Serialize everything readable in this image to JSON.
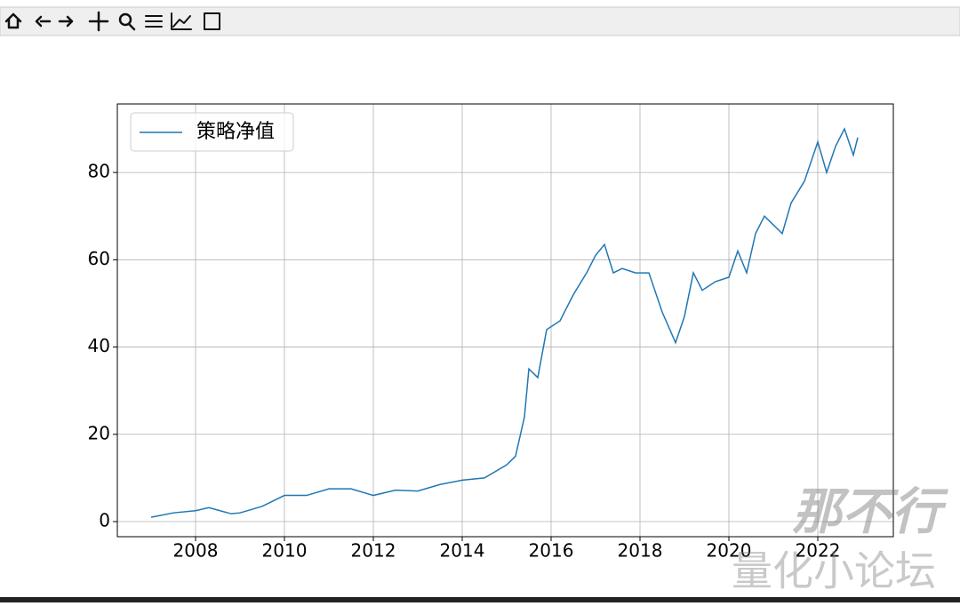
{
  "chart_data": {
    "type": "line",
    "x": [
      2007.0,
      2007.5,
      2008.0,
      2008.3,
      2008.8,
      2009.0,
      2009.5,
      2010.0,
      2010.5,
      2011.0,
      2011.5,
      2012.0,
      2012.5,
      2013.0,
      2013.5,
      2014.0,
      2014.5,
      2015.0,
      2015.2,
      2015.4,
      2015.5,
      2015.7,
      2015.9,
      2016.2,
      2016.5,
      2016.8,
      2017.0,
      2017.2,
      2017.4,
      2017.6,
      2017.9,
      2018.2,
      2018.5,
      2018.8,
      2019.0,
      2019.2,
      2019.4,
      2019.7,
      2020.0,
      2020.2,
      2020.4,
      2020.6,
      2020.8,
      2021.0,
      2021.2,
      2021.4,
      2021.7,
      2022.0,
      2022.2,
      2022.4,
      2022.6,
      2022.8,
      2022.9
    ],
    "series": [
      {
        "name": "策略净值",
        "color": "#1f77b4",
        "values": [
          1,
          2,
          2.5,
          3.2,
          1.8,
          2,
          3.5,
          6,
          6,
          7.5,
          7.5,
          6,
          7.2,
          7,
          8.5,
          9.5,
          10,
          13,
          15,
          24,
          35,
          33,
          44,
          46,
          52,
          57,
          61,
          63.5,
          57,
          58,
          57,
          57,
          48,
          41,
          47,
          57,
          53,
          55,
          56,
          62,
          57,
          66,
          70,
          68,
          66,
          73,
          78,
          87,
          80,
          86,
          90,
          84,
          88
        ]
      }
    ],
    "xlim": [
      2006.24,
      2023.7
    ],
    "xticks": [
      2008,
      2010,
      2012,
      2014,
      2016,
      2018,
      2020,
      2022
    ],
    "ylim": [
      -3.46,
      95.7
    ],
    "yticks": [
      0,
      20,
      40,
      60,
      80
    ],
    "grid": true,
    "legend": "upper-left"
  },
  "watermark": {
    "line1": "那不行",
    "line2": "量化小论坛"
  }
}
